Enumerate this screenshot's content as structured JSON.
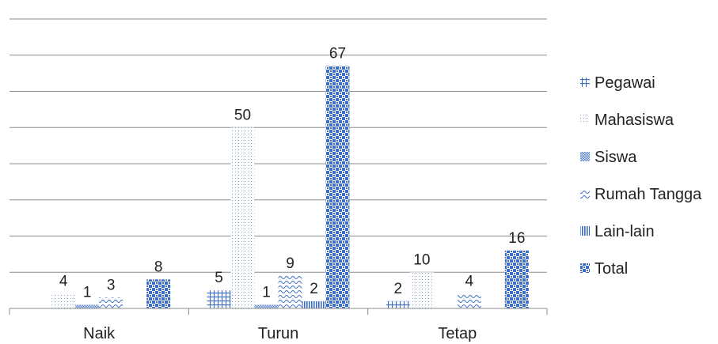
{
  "chart_data": {
    "type": "bar",
    "categories": [
      "Naik",
      "Turun",
      "Tetap"
    ],
    "series": [
      {
        "name": "Pegawai",
        "values": [
          0,
          5,
          2
        ],
        "pattern": "grid",
        "color": "#3b6cc4"
      },
      {
        "name": "Mahasiswa",
        "values": [
          4,
          50,
          10
        ],
        "pattern": "dots",
        "color": "#6f9bd9"
      },
      {
        "name": "Siswa",
        "values": [
          1,
          1,
          0
        ],
        "pattern": "fine-check",
        "color": "#3b6cc4"
      },
      {
        "name": "Rumah Tangga",
        "values": [
          3,
          9,
          4
        ],
        "pattern": "waves",
        "color": "#3b6cc4"
      },
      {
        "name": "Lain-lain",
        "values": [
          0,
          2,
          0
        ],
        "pattern": "vlines",
        "color": "#3b6cc4"
      },
      {
        "name": "Total",
        "values": [
          8,
          67,
          16
        ],
        "pattern": "check",
        "color": "#3b6cc4"
      }
    ],
    "data_labels": [
      [
        null,
        5,
        2
      ],
      [
        4,
        50,
        10
      ],
      [
        1,
        1,
        null
      ],
      [
        3,
        9,
        4
      ],
      [
        null,
        2,
        null
      ],
      [
        8,
        67,
        16
      ]
    ],
    "ylim": [
      0,
      80
    ],
    "gridline_step": 10,
    "grid": true,
    "legend_position": "right",
    "title": "",
    "xlabel": "",
    "ylabel": ""
  }
}
